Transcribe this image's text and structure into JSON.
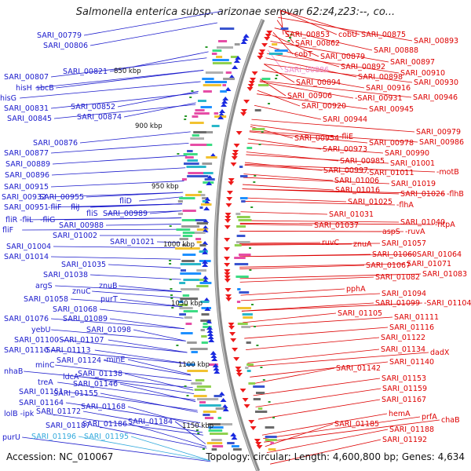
{
  "title": "Salmonella enterica subsp. arizonae serovar 62:z4,z23:--, co...",
  "footer": {
    "accession": "Accession: NC_010067",
    "stats": "Topology: circular; Length: 4,600,800 bp; Genes: 4,634"
  },
  "colors": {
    "left_labels": "#1a1acc",
    "right_labels": "#dd0000",
    "highlight_pink": "#ee88cc",
    "highlight_cyan": "#33aadd",
    "backbone": "#8a8a8a"
  },
  "kbp_marks": [
    "850 kbp",
    "900 kbp",
    "950 kbp",
    "1000 kbp",
    "1050 kbp",
    "1100 kbp",
    "1150 kbp"
  ],
  "left_labels": [
    [
      "SARI_00779",
      47,
      48
    ],
    [
      "SARI_00806",
      55,
      61
    ],
    [
      "SARI_00821",
      80,
      94
    ],
    [
      "SARI_00807",
      5,
      101
    ],
    [
      "hisH",
      20,
      115
    ],
    [
      "sbcB",
      46,
      115
    ],
    [
      "hisG",
      0,
      128
    ],
    [
      "SARI_00852",
      90,
      139
    ],
    [
      "SARI_00831",
      5,
      141
    ],
    [
      "SARI_00874",
      98,
      152
    ],
    [
      "SARI_00845",
      9,
      154
    ],
    [
      "SARI_00876",
      42,
      185
    ],
    [
      "SARI_00877",
      5,
      198
    ],
    [
      "SARI_00889",
      7,
      212
    ],
    [
      "SARI_00896",
      6,
      226
    ],
    [
      "SARI_00915",
      5,
      241
    ],
    [
      "SARI_00932",
      2,
      254
    ],
    [
      "SARI_00955",
      50,
      254
    ],
    [
      "SARI_00951",
      5,
      267
    ],
    [
      "-fliF",
      61,
      267
    ],
    [
      "fliJ",
      90,
      267
    ],
    [
      "fliD",
      152,
      259
    ],
    [
      "fliS",
      110,
      275
    ],
    [
      "SARI_00989",
      131,
      275
    ],
    [
      "fliR",
      7,
      283
    ],
    [
      "-fliL",
      25,
      283
    ],
    [
      "-fliG",
      51,
      283
    ],
    [
      "SARI_00988",
      75,
      290
    ],
    [
      "fliF",
      3,
      296
    ],
    [
      "SARI_01002",
      67,
      303
    ],
    [
      "SARI_01004",
      8,
      317
    ],
    [
      "SARI_01021",
      140,
      311
    ],
    [
      "SARI_01014",
      5,
      330
    ],
    [
      "SARI_01035",
      78,
      340
    ],
    [
      "SARI_01038",
      55,
      353
    ],
    [
      "argS",
      45,
      367
    ],
    [
      "znuC",
      92,
      374
    ],
    [
      "znuB",
      126,
      367
    ],
    [
      "purT",
      128,
      384
    ],
    [
      "SARI_01058",
      30,
      384
    ],
    [
      "SARI_01068",
      67,
      397
    ],
    [
      "SARI_01076",
      5,
      409
    ],
    [
      "SARI_01089",
      80,
      409
    ],
    [
      "SARI_01098",
      110,
      423
    ],
    [
      "yebU",
      40,
      423
    ],
    [
      "SARI_01100",
      18,
      436
    ],
    [
      "-SARI_01107",
      72,
      436
    ],
    [
      "SARI_01110",
      5,
      449
    ],
    [
      "-SARI_01113",
      55,
      449
    ],
    [
      "SARI_01124",
      72,
      462
    ],
    [
      "-minE",
      132,
      461
    ],
    [
      "minC",
      45,
      468
    ],
    [
      "nhaB",
      5,
      476
    ],
    [
      "ldcA",
      80,
      483
    ],
    [
      "SARI_01138",
      99,
      479
    ],
    [
      "treA",
      48,
      490
    ],
    [
      "SARI_01146",
      93,
      492
    ],
    [
      "SARI_01151",
      24,
      502
    ],
    [
      "SARI_01155",
      68,
      504
    ],
    [
      "SARI_01164",
      24,
      516
    ],
    [
      "SARI_01168",
      103,
      521
    ],
    [
      "lolB -ipk",
      5,
      530
    ],
    [
      "SARI_01172",
      46,
      527
    ],
    [
      "SARI_01187",
      58,
      545
    ],
    [
      "SARI_01186",
      105,
      543
    ],
    [
      "SARI_01184",
      163,
      540
    ],
    [
      "purU",
      3,
      560
    ],
    [
      "SARI_01196",
      40,
      559
    ],
    [
      "SARI_01195",
      107,
      559
    ]
  ],
  "right_labels": [
    [
      "SARI_00853",
      363,
      47
    ],
    [
      "cobU",
      431,
      47
    ],
    [
      "SARI_00875",
      460,
      47
    ],
    [
      "SARI_00862",
      376,
      58
    ],
    [
      "SARI_00893",
      527,
      55
    ],
    [
      "SARI_00888",
      476,
      67
    ],
    [
      "cobT",
      375,
      72
    ],
    [
      "SARI_00879",
      408,
      75
    ],
    [
      "SARI_00897",
      497,
      82
    ],
    [
      "SARI_00886",
      362,
      92
    ],
    [
      "SARI_00892",
      434,
      88
    ],
    [
      "SARI_00910",
      510,
      96
    ],
    [
      "SARI_00898",
      456,
      101
    ],
    [
      "SARI_00894",
      377,
      108
    ],
    [
      "SARI_00930",
      527,
      108
    ],
    [
      "SARI_00916",
      466,
      115
    ],
    [
      "SARI_00906",
      366,
      125
    ],
    [
      "-SARI_00931",
      452,
      128
    ],
    [
      "SARI_00946",
      526,
      127
    ],
    [
      "SARI_00920",
      384,
      138
    ],
    [
      "SARI_00945",
      470,
      142
    ],
    [
      "SARI_00944",
      411,
      155
    ],
    [
      "SARI_00979",
      530,
      171
    ],
    [
      "SARI_00954",
      375,
      179
    ],
    [
      "-fliE",
      432,
      177
    ],
    [
      "SARI_00978",
      470,
      185
    ],
    [
      "SARI_00986",
      534,
      184
    ],
    [
      "SARI_00973",
      411,
      193
    ],
    [
      "SARI_00990",
      490,
      198
    ],
    [
      "SARI_00985",
      433,
      208
    ],
    [
      "SARI_01001",
      497,
      211
    ],
    [
      "SARI_00997",
      412,
      220
    ],
    [
      "-SARI_01011",
      467,
      223
    ],
    [
      "-motB",
      556,
      222
    ],
    [
      "SARI_01006",
      426,
      233
    ],
    [
      "SARI_01019",
      498,
      237
    ],
    [
      "SARI_01016",
      427,
      245
    ],
    [
      "SARI_01026",
      510,
      250
    ],
    [
      "-flhB",
      569,
      250
    ],
    [
      "SARI_01025",
      443,
      260
    ],
    [
      "-flhA",
      505,
      264
    ],
    [
      "SARI_01031",
      419,
      276
    ],
    [
      "SARI_01040",
      510,
      286
    ],
    [
      "-ntpA",
      554,
      289
    ],
    [
      "SARI_01037",
      400,
      290
    ],
    [
      "aspS",
      487,
      298
    ],
    [
      "-ruvA",
      516,
      298
    ],
    [
      "ruvC",
      410,
      312
    ],
    [
      "znuA",
      450,
      314
    ],
    [
      "SARI_01057",
      486,
      313
    ],
    [
      "SARI_01060",
      474,
      327
    ],
    [
      "SARI_01064",
      531,
      327
    ],
    [
      "SARI_01067",
      466,
      341
    ],
    [
      "SARI_01071",
      518,
      339
    ],
    [
      "SARI_01082",
      478,
      356
    ],
    [
      "SARI_01083",
      538,
      352
    ],
    [
      "pphA",
      441,
      371
    ],
    [
      "SARI_01094",
      486,
      377
    ],
    [
      "SARI_01099",
      478,
      389
    ],
    [
      "-SARI_01104",
      540,
      389
    ],
    [
      "SARI_01105",
      430,
      402
    ],
    [
      "SARI_01111",
      502,
      407
    ],
    [
      "SARI_01116",
      496,
      420
    ],
    [
      "SARI_01122",
      485,
      433
    ],
    [
      "SARI_01134",
      485,
      448
    ],
    [
      "dadX",
      548,
      452
    ],
    [
      "SARI_01140",
      496,
      464
    ],
    [
      "SARI_01142",
      428,
      472
    ],
    [
      "SARI_01153",
      486,
      485
    ],
    [
      "SARI_01159",
      487,
      498
    ],
    [
      "SARI_01167",
      486,
      512
    ],
    [
      "hemA",
      495,
      530
    ],
    [
      "prfA",
      537,
      534
    ],
    [
      "chaB",
      562,
      538
    ],
    [
      "SARI_01185",
      426,
      543
    ],
    [
      "SARI_01188",
      496,
      550
    ],
    [
      "SARI_01192",
      487,
      563
    ]
  ]
}
